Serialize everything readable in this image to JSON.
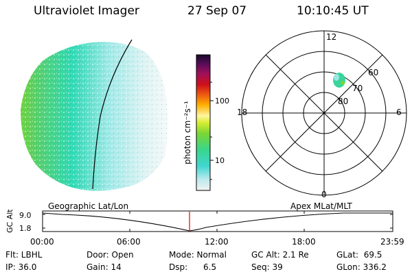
{
  "header": {
    "instrument": "Ultraviolet Imager",
    "date": "27 Sep 07",
    "time": "10:10:45 UT"
  },
  "colorbar": {
    "unit_label": "photon cm⁻²s⁻¹",
    "ticks": [
      "100",
      "10"
    ]
  },
  "polar_plot": {
    "mlt_labels": {
      "top": "12",
      "left": "18",
      "right": "6",
      "bottom": "0"
    },
    "lat_labels": [
      "60",
      "70",
      "80"
    ]
  },
  "timeline": {
    "axis_label": "GC Alt",
    "y_ticks": [
      "9.0",
      "1.8"
    ],
    "left_caption": "Geographic Lat/Lon",
    "right_caption": "Apex MLat/MLT",
    "x_ticks": [
      "00:00",
      "06:00",
      "12:00",
      "18:00",
      "23:59"
    ]
  },
  "status": {
    "flt": "Flt: LBHL",
    "door": "Door: Open",
    "mode": "Mode: Normal",
    "gc_alt": "GC Alt: 2.1 Re",
    "glat": "GLat:  69.5",
    "ip": "IP: 36.0",
    "gain": "Gain: 14",
    "dsp": "Dsp:      6.5",
    "seq": "Seq: 39",
    "glon": "GLon: 336.2"
  },
  "colors": {
    "trace": "#000000",
    "time_marker": "#e00000"
  }
}
